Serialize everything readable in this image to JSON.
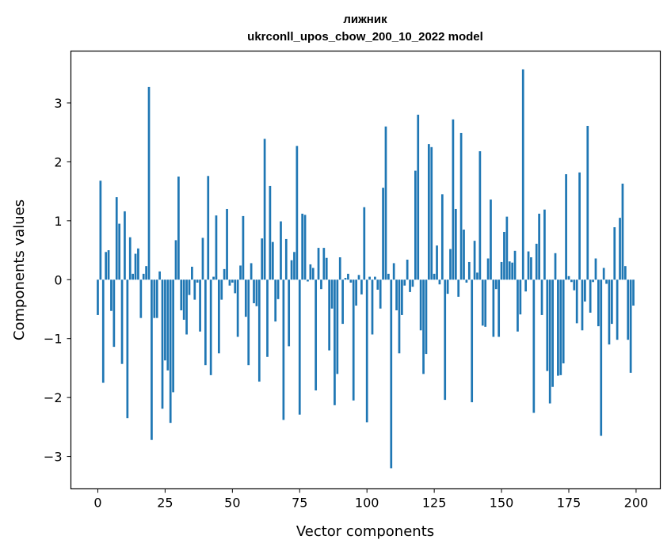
{
  "chart_data": {
    "type": "bar",
    "title": "лижник",
    "subtitle": "ukrconll_upos_cbow_200_10_2022 model",
    "xlabel": "Vector components",
    "ylabel": "Components values",
    "xlim": [
      -10,
      209
    ],
    "ylim": [
      -3.55,
      3.88
    ],
    "xticks": [
      0,
      25,
      50,
      75,
      100,
      125,
      150,
      175,
      200
    ],
    "yticks": [
      -3,
      -2,
      -1,
      0,
      1,
      2,
      3
    ],
    "xtick_labels": [
      "0",
      "25",
      "50",
      "75",
      "100",
      "125",
      "150",
      "175",
      "200"
    ],
    "ytick_labels": [
      "−3",
      "−2",
      "−1",
      "0",
      "1",
      "2",
      "3"
    ],
    "grid": false,
    "bar_color": "#1f77b4",
    "x": [
      0,
      1,
      2,
      3,
      4,
      5,
      6,
      7,
      8,
      9,
      10,
      11,
      12,
      13,
      14,
      15,
      16,
      17,
      18,
      19,
      20,
      21,
      22,
      23,
      24,
      25,
      26,
      27,
      28,
      29,
      30,
      31,
      32,
      33,
      34,
      35,
      36,
      37,
      38,
      39,
      40,
      41,
      42,
      43,
      44,
      45,
      46,
      47,
      48,
      49,
      50,
      51,
      52,
      53,
      54,
      55,
      56,
      57,
      58,
      59,
      60,
      61,
      62,
      63,
      64,
      65,
      66,
      67,
      68,
      69,
      70,
      71,
      72,
      73,
      74,
      75,
      76,
      77,
      78,
      79,
      80,
      81,
      82,
      83,
      84,
      85,
      86,
      87,
      88,
      89,
      90,
      91,
      92,
      93,
      94,
      95,
      96,
      97,
      98,
      99,
      100,
      101,
      102,
      103,
      104,
      105,
      106,
      107,
      108,
      109,
      110,
      111,
      112,
      113,
      114,
      115,
      116,
      117,
      118,
      119,
      120,
      121,
      122,
      123,
      124,
      125,
      126,
      127,
      128,
      129,
      130,
      131,
      132,
      133,
      134,
      135,
      136,
      137,
      138,
      139,
      140,
      141,
      142,
      143,
      144,
      145,
      146,
      147,
      148,
      149,
      150,
      151,
      152,
      153,
      154,
      155,
      156,
      157,
      158,
      159,
      160,
      161,
      162,
      163,
      164,
      165,
      166,
      167,
      168,
      169,
      170,
      171,
      172,
      173,
      174,
      175,
      176,
      177,
      178,
      179,
      180,
      181,
      182,
      183,
      184,
      185,
      186,
      187,
      188,
      189,
      190,
      191,
      192,
      193,
      194,
      195,
      196,
      197,
      198,
      199
    ],
    "values": [
      -0.6,
      1.68,
      -1.75,
      0.47,
      0.5,
      -0.53,
      -1.14,
      1.4,
      0.95,
      -1.43,
      1.16,
      -2.35,
      0.72,
      0.1,
      0.44,
      0.53,
      -0.65,
      0.1,
      0.23,
      3.27,
      -2.72,
      -0.65,
      -0.65,
      0.14,
      -2.19,
      -1.37,
      -1.54,
      -2.43,
      -1.91,
      0.67,
      1.75,
      -0.52,
      -0.68,
      -0.93,
      -0.26,
      0.22,
      -0.34,
      -0.05,
      -0.88,
      0.71,
      -1.45,
      1.76,
      -1.62,
      0.05,
      1.09,
      -1.25,
      -0.34,
      0.18,
      1.2,
      -0.1,
      -0.05,
      -0.23,
      -0.97,
      0.24,
      1.08,
      -0.63,
      -1.45,
      0.28,
      -0.4,
      -0.45,
      -1.73,
      0.7,
      2.39,
      -1.31,
      1.59,
      0.64,
      -0.71,
      -0.33,
      0.99,
      -2.38,
      0.69,
      -1.13,
      0.33,
      0.47,
      2.27,
      -2.29,
      1.12,
      1.1,
      -0.03,
      0.26,
      0.2,
      -1.88,
      0.54,
      -0.16,
      0.54,
      0.37,
      -1.2,
      -0.49,
      -2.13,
      -1.6,
      0.38,
      -0.75,
      0.03,
      0.1,
      -0.05,
      -2.05,
      -0.44,
      0.08,
      -0.25,
      1.23,
      -2.42,
      0.05,
      -0.93,
      0.05,
      -0.17,
      -0.49,
      1.56,
      2.6,
      0.1,
      -3.2,
      0.28,
      -0.52,
      -1.25,
      -0.6,
      -0.1,
      0.34,
      -0.21,
      -0.12,
      1.85,
      2.8,
      -0.86,
      -1.6,
      -1.26,
      2.3,
      2.25,
      0.1,
      0.58,
      -0.08,
      1.45,
      -2.04,
      -0.24,
      0.52,
      2.72,
      1.2,
      -0.29,
      2.49,
      0.85,
      -0.05,
      0.3,
      -2.08,
      0.66,
      0.12,
      2.18,
      -0.78,
      -0.8,
      0.36,
      1.36,
      -0.97,
      -0.16,
      -0.97,
      0.3,
      0.81,
      1.07,
      0.31,
      0.29,
      0.49,
      -0.88,
      -0.59,
      3.57,
      -0.2,
      0.48,
      0.38,
      -2.26,
      0.61,
      1.12,
      -0.6,
      1.19,
      -1.55,
      -2.1,
      -1.82,
      0.45,
      -1.63,
      -1.62,
      -1.42,
      1.79,
      0.06,
      -0.04,
      -0.18,
      -0.74,
      1.82,
      -0.86,
      -0.37,
      2.61,
      -0.56,
      -0.04,
      0.36,
      -0.79,
      -2.65,
      0.2,
      -0.07,
      -1.1,
      -0.75,
      0.89,
      -1.02,
      1.05,
      1.63,
      0.23,
      -1.02,
      -1.58,
      -0.44
    ]
  }
}
